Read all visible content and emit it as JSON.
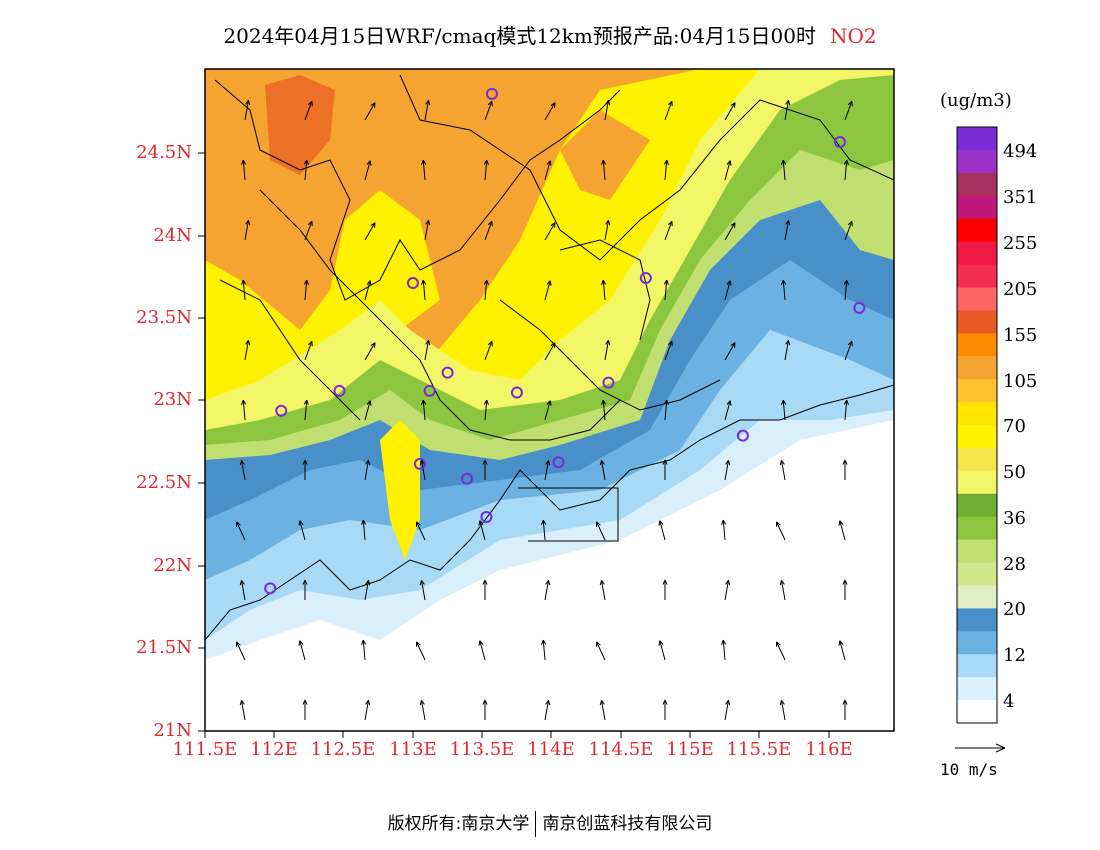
{
  "title": {
    "text": "2024年04月15日WRF/cmaq模式12km预报产品:04月15日00时",
    "species": "NO2"
  },
  "axes": {
    "lat_labels": [
      "24.5N",
      "24N",
      "23.5N",
      "23N",
      "22.5N",
      "22N",
      "21.5N",
      "21N"
    ],
    "lon_labels": [
      "111.5E",
      "112E",
      "112.5E",
      "113E",
      "113.5E",
      "114E",
      "114.5E",
      "115E",
      "115.5E",
      "116E"
    ]
  },
  "colorbar": {
    "unit": "(ug/m3)",
    "labels": [
      "494",
      "351",
      "255",
      "205",
      "155",
      "105",
      "70",
      "50",
      "36",
      "28",
      "20",
      "12",
      "4"
    ],
    "colors": [
      "#7a2bd6",
      "#9b32c8",
      "#a8305e",
      "#c0187a",
      "#ff0000",
      "#ee1745",
      "#f52c52",
      "#ff6464",
      "#ea5a24",
      "#ff8a00",
      "#f5a431",
      "#fdc22d",
      "#ffe400",
      "#fff200",
      "#f5e44a",
      "#f2f566",
      "#6fae32",
      "#8cc63f",
      "#c0df70",
      "#d3e58d",
      "#e0ecc2",
      "#4a90c8",
      "#6bb1e1",
      "#a8daf5",
      "#d9effb",
      "#ffffff"
    ]
  },
  "wind_reference": {
    "label": "10 m/s"
  },
  "footer": {
    "left": "版权所有:南京大学",
    "right": "南京创蓝科技有限公司"
  },
  "stations": [
    {
      "lon": 113.57,
      "lat": 24.84
    },
    {
      "lon": 116.08,
      "lat": 24.55
    },
    {
      "lon": 113.0,
      "lat": 23.7
    },
    {
      "lon": 114.68,
      "lat": 23.73
    },
    {
      "lon": 116.22,
      "lat": 23.55
    },
    {
      "lon": 112.47,
      "lat": 23.05
    },
    {
      "lon": 113.12,
      "lat": 23.05
    },
    {
      "lon": 113.25,
      "lat": 23.16
    },
    {
      "lon": 113.75,
      "lat": 23.04
    },
    {
      "lon": 114.41,
      "lat": 23.1
    },
    {
      "lon": 112.05,
      "lat": 22.93
    },
    {
      "lon": 113.05,
      "lat": 22.61
    },
    {
      "lon": 113.39,
      "lat": 22.52
    },
    {
      "lon": 114.05,
      "lat": 22.62
    },
    {
      "lon": 115.38,
      "lat": 22.78
    },
    {
      "lon": 113.53,
      "lat": 22.29
    },
    {
      "lon": 111.97,
      "lat": 21.86
    }
  ]
}
